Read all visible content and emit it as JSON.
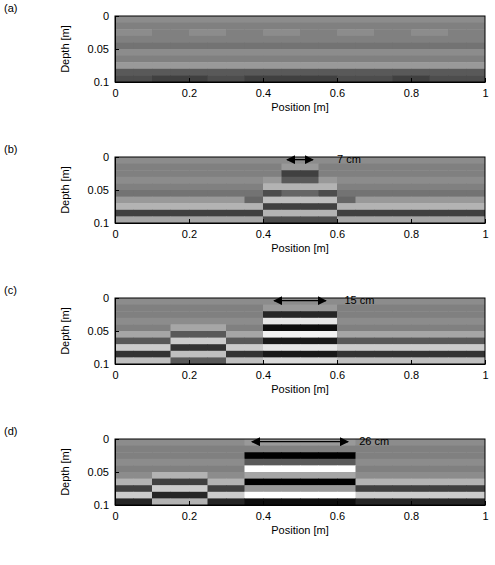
{
  "chart_data": [
    {
      "type": "heatmap",
      "title": "(a)",
      "x_label": "Position [m]",
      "y_label": "Depth [m]",
      "xlim": [
        0,
        1
      ],
      "ylim": [
        0,
        0.1
      ],
      "xticks": [
        0,
        0.2,
        0.4,
        0.6,
        0.8,
        1
      ],
      "yticks": [
        0,
        0.05,
        0.1
      ],
      "x": [
        0.025,
        0.075,
        0.125,
        0.175,
        0.225,
        0.275,
        0.325,
        0.375,
        0.425,
        0.475,
        0.525,
        0.575,
        0.625,
        0.675,
        0.725,
        0.775,
        0.825,
        0.875,
        0.925,
        0.975
      ],
      "y": [
        0.005,
        0.015,
        0.025,
        0.035,
        0.045,
        0.055,
        0.065,
        0.075,
        0.085,
        0.095
      ],
      "cells": [
        [
          0.1,
          0.1,
          0.1,
          0.1,
          0.1,
          0.1,
          0.1,
          0.1,
          0.1,
          0.1,
          0.1,
          0.1,
          0.1,
          0.1,
          0.1,
          0.1,
          0.1,
          0.1,
          0.1,
          0.1
        ],
        [
          0,
          0,
          0,
          0,
          0,
          0,
          0,
          0,
          0,
          0,
          0,
          0,
          0,
          0,
          0,
          0,
          0,
          0,
          0,
          0
        ],
        [
          0.1,
          0.1,
          0,
          0,
          0.1,
          0.1,
          0,
          0,
          0.1,
          0.1,
          0,
          0,
          0.1,
          0.1,
          0,
          0,
          0.1,
          0.1,
          0,
          0
        ],
        [
          0,
          0,
          0,
          0,
          0,
          0,
          0,
          0,
          0,
          0,
          0,
          0,
          0,
          0,
          0,
          0,
          0,
          0,
          0,
          0
        ],
        [
          -0.1,
          -0.1,
          -0.1,
          -0.1,
          -0.1,
          -0.1,
          -0.1,
          -0.1,
          -0.1,
          -0.1,
          -0.1,
          -0.1,
          -0.1,
          -0.1,
          -0.1,
          -0.1,
          -0.1,
          -0.1,
          -0.1,
          -0.1
        ],
        [
          0.1,
          0.1,
          0.1,
          0.1,
          0.1,
          0.1,
          0.1,
          0.1,
          0.1,
          0.1,
          0.1,
          0.1,
          0.1,
          0.1,
          0.1,
          0.1,
          0.1,
          0.1,
          0.1,
          0.1
        ],
        [
          0,
          0,
          0,
          0,
          0,
          0,
          0,
          0,
          0,
          0,
          0,
          0,
          0,
          0,
          0,
          0,
          0,
          0,
          0,
          0
        ],
        [
          0.2,
          0.2,
          0.2,
          0.2,
          0.2,
          0.2,
          0.2,
          0.2,
          0.2,
          0.2,
          0.2,
          0.2,
          0.2,
          0.2,
          0.2,
          0.2,
          0.2,
          0.2,
          0.2,
          0.2
        ],
        [
          -0.3,
          -0.3,
          -0.3,
          -0.3,
          -0.3,
          -0.3,
          -0.3,
          -0.3,
          -0.3,
          -0.3,
          -0.3,
          -0.3,
          -0.3,
          -0.3,
          -0.3,
          -0.3,
          -0.3,
          -0.3,
          -0.3,
          -0.3
        ],
        [
          -0.4,
          -0.4,
          -0.5,
          -0.5,
          -0.5,
          -0.4,
          -0.4,
          -0.5,
          -0.5,
          -0.5,
          -0.5,
          -0.5,
          -0.4,
          -0.4,
          -0.4,
          -0.5,
          -0.5,
          -0.4,
          -0.4,
          -0.4
        ]
      ],
      "annotations": []
    },
    {
      "type": "heatmap",
      "title": "(b)",
      "x_label": "Position [m]",
      "y_label": "Depth [m]",
      "xlim": [
        0,
        1
      ],
      "ylim": [
        0,
        0.1
      ],
      "xticks": [
        0,
        0.2,
        0.4,
        0.6,
        0.8,
        1
      ],
      "yticks": [
        0,
        0.05,
        0.1
      ],
      "x": [
        0.025,
        0.075,
        0.125,
        0.175,
        0.225,
        0.275,
        0.325,
        0.375,
        0.425,
        0.475,
        0.525,
        0.575,
        0.625,
        0.675,
        0.725,
        0.775,
        0.825,
        0.875,
        0.925,
        0.975
      ],
      "y": [
        0.005,
        0.015,
        0.025,
        0.035,
        0.045,
        0.055,
        0.065,
        0.075,
        0.085,
        0.095
      ],
      "cells": [
        [
          0.1,
          0.1,
          0.1,
          0.1,
          0.1,
          0.1,
          0.1,
          0.1,
          0.1,
          0.1,
          0.1,
          0.1,
          0.1,
          0.1,
          0.1,
          0.1,
          0.1,
          0.1,
          0.1,
          0.1
        ],
        [
          0,
          0,
          0,
          0,
          0,
          0,
          0,
          0,
          0,
          0.2,
          0.2,
          0,
          0,
          0,
          0,
          0,
          0,
          0,
          0,
          0
        ],
        [
          0,
          0,
          0,
          0,
          0,
          0,
          0,
          0,
          0,
          -0.5,
          -0.5,
          0,
          0,
          0,
          0,
          0,
          0,
          0,
          0,
          0
        ],
        [
          0.1,
          0.1,
          0.1,
          0.1,
          0.1,
          0.1,
          0.1,
          0.1,
          0.2,
          -0.3,
          -0.3,
          0.2,
          0.1,
          0.1,
          0.1,
          0.1,
          0.1,
          0.1,
          0.1,
          0.1
        ],
        [
          0,
          0,
          0,
          0,
          0,
          0,
          0,
          0,
          0.4,
          0.4,
          0.4,
          0.4,
          0,
          0,
          0,
          0,
          0,
          0,
          0,
          0
        ],
        [
          -0.1,
          -0.1,
          -0.1,
          -0.1,
          -0.1,
          -0.1,
          -0.1,
          -0.1,
          -0.4,
          -0.2,
          -0.2,
          -0.4,
          -0.1,
          -0.1,
          -0.1,
          -0.1,
          -0.1,
          -0.1,
          -0.1,
          -0.1
        ],
        [
          0.2,
          0.2,
          0.2,
          0.2,
          0.2,
          0.2,
          0.2,
          -0.2,
          0.5,
          0.5,
          0.5,
          0.5,
          -0.2,
          0.2,
          0.2,
          0.2,
          0.2,
          0.2,
          0.2,
          0.2
        ],
        [
          0.4,
          0.4,
          0.4,
          0.4,
          0.4,
          0.4,
          0.4,
          0.4,
          -0.5,
          -0.5,
          -0.5,
          -0.5,
          0.4,
          0.4,
          0.4,
          0.4,
          0.4,
          0.4,
          0.4,
          0.4
        ],
        [
          -0.5,
          -0.5,
          -0.5,
          -0.5,
          -0.5,
          -0.5,
          -0.5,
          -0.5,
          0.4,
          0.4,
          0.4,
          0.4,
          -0.5,
          -0.5,
          -0.5,
          -0.5,
          -0.5,
          -0.5,
          -0.5,
          -0.5
        ],
        [
          0.3,
          0.3,
          0.3,
          0.3,
          0.3,
          0.3,
          0.3,
          0.3,
          -0.4,
          -0.4,
          -0.4,
          -0.4,
          0.3,
          0.3,
          0.3,
          0.3,
          0.3,
          0.3,
          0.3,
          0.3
        ]
      ],
      "annotations": [
        {
          "text": "7 cm",
          "x": 0.6,
          "y": 0.004,
          "x_start": 0.465,
          "x_end": 0.535
        }
      ]
    },
    {
      "type": "heatmap",
      "title": "(c)",
      "x_label": "Position [m]",
      "y_label": "Depth [m]",
      "xlim": [
        0,
        1
      ],
      "ylim": [
        0,
        0.1
      ],
      "xticks": [
        0,
        0.2,
        0.4,
        0.6,
        0.8,
        1
      ],
      "yticks": [
        0,
        0.05,
        0.1
      ],
      "x": [
        0.025,
        0.075,
        0.125,
        0.175,
        0.225,
        0.275,
        0.325,
        0.375,
        0.425,
        0.475,
        0.525,
        0.575,
        0.625,
        0.675,
        0.725,
        0.775,
        0.825,
        0.875,
        0.925,
        0.975
      ],
      "y": [
        0.005,
        0.015,
        0.025,
        0.035,
        0.045,
        0.055,
        0.065,
        0.075,
        0.085,
        0.095
      ],
      "cells": [
        [
          0.1,
          0.1,
          0.1,
          0.1,
          0.1,
          0.1,
          0.1,
          0.1,
          0.1,
          0.1,
          0.1,
          0.1,
          0.1,
          0.1,
          0.1,
          0.1,
          0.1,
          0.1,
          0.1,
          0.1
        ],
        [
          0,
          0,
          0,
          0,
          0,
          0,
          0,
          0,
          0.2,
          0.2,
          0.2,
          0.2,
          0,
          0,
          0,
          0,
          0,
          0,
          0,
          0
        ],
        [
          0,
          0,
          0,
          0,
          0,
          0,
          0,
          0,
          -0.7,
          -0.7,
          -0.7,
          -0.7,
          0,
          0,
          0,
          0,
          0,
          0,
          0,
          0
        ],
        [
          0.1,
          0.1,
          0.1,
          0.1,
          0.1,
          0.1,
          0.1,
          0.1,
          0.8,
          0.8,
          0.8,
          0.8,
          0.1,
          0.1,
          0.1,
          0.1,
          0.1,
          0.1,
          0.1,
          0.1
        ],
        [
          0,
          0,
          0,
          0.3,
          0.3,
          0.3,
          0,
          0,
          -0.9,
          -0.9,
          -0.9,
          -0.9,
          0,
          0,
          0,
          0,
          0,
          0,
          0,
          0
        ],
        [
          0.3,
          0.3,
          0.3,
          -0.3,
          -0.3,
          -0.3,
          0.3,
          0.3,
          0.9,
          0.9,
          0.9,
          0.9,
          0.3,
          0.3,
          0.3,
          0.3,
          0.3,
          0.3,
          0.3,
          0.3
        ],
        [
          -0.3,
          -0.3,
          -0.3,
          0.6,
          0.6,
          0.6,
          -0.3,
          -0.3,
          -0.8,
          -0.8,
          -0.8,
          -0.8,
          -0.3,
          -0.3,
          -0.3,
          -0.3,
          -0.3,
          -0.3,
          -0.3,
          -0.3
        ],
        [
          0.6,
          0.6,
          0.6,
          -0.6,
          -0.6,
          -0.6,
          0.6,
          0.6,
          0.8,
          0.8,
          0.8,
          0.8,
          0.6,
          0.6,
          0.6,
          0.6,
          0.6,
          0.6,
          0.6,
          0.6
        ],
        [
          -0.6,
          -0.6,
          -0.6,
          0.5,
          0.5,
          0.5,
          -0.6,
          -0.6,
          -0.8,
          -0.8,
          -0.8,
          -0.8,
          -0.6,
          -0.6,
          -0.6,
          -0.6,
          -0.6,
          -0.6,
          -0.6,
          -0.6
        ],
        [
          0.5,
          0.5,
          0.5,
          -0.3,
          -0.3,
          -0.3,
          0.5,
          0.5,
          0.7,
          0.7,
          0.7,
          0.7,
          0.5,
          0.5,
          0.5,
          0.5,
          0.5,
          0.5,
          0.5,
          0.5
        ]
      ],
      "annotations": [
        {
          "text": "15 cm",
          "x": 0.62,
          "y": 0.004,
          "x_start": 0.43,
          "x_end": 0.57
        }
      ]
    },
    {
      "type": "heatmap",
      "title": "(d)",
      "x_label": "Position [m]",
      "y_label": "Depth [m]",
      "xlim": [
        0,
        1
      ],
      "ylim": [
        0,
        0.1
      ],
      "xticks": [
        0,
        0.2,
        0.4,
        0.6,
        0.8,
        1
      ],
      "yticks": [
        0,
        0.05,
        0.1
      ],
      "x": [
        0.025,
        0.075,
        0.125,
        0.175,
        0.225,
        0.275,
        0.325,
        0.375,
        0.425,
        0.475,
        0.525,
        0.575,
        0.625,
        0.675,
        0.725,
        0.775,
        0.825,
        0.875,
        0.925,
        0.975
      ],
      "y": [
        0.005,
        0.015,
        0.025,
        0.035,
        0.045,
        0.055,
        0.065,
        0.075,
        0.085,
        0.095
      ],
      "cells": [
        [
          0.1,
          0.1,
          0.1,
          0.1,
          0.1,
          0.1,
          0.1,
          0.2,
          0.2,
          0.2,
          0.2,
          0.2,
          0.2,
          0.1,
          0.1,
          0.1,
          0.1,
          0.1,
          0.1,
          0.1
        ],
        [
          0,
          0,
          0,
          0,
          0,
          0,
          0,
          0,
          0,
          0,
          0,
          0,
          0,
          0,
          0,
          0,
          0,
          0,
          0,
          0
        ],
        [
          0,
          0,
          0,
          0,
          0,
          0,
          0,
          -1,
          -1,
          -1,
          -1,
          -1,
          -1,
          0,
          0,
          0,
          0,
          0,
          0,
          0
        ],
        [
          0.1,
          0.1,
          0.1,
          0.1,
          0.1,
          0.1,
          0.1,
          -0.3,
          -0.3,
          -0.3,
          -0.3,
          -0.3,
          -0.3,
          0.1,
          0.1,
          0.1,
          0.1,
          0.1,
          0.1,
          0.1
        ],
        [
          0,
          0,
          0,
          0,
          0,
          0,
          0,
          1,
          1,
          1,
          1,
          1,
          1,
          0,
          0,
          0,
          0,
          0,
          0,
          0
        ],
        [
          0.1,
          0.1,
          0.4,
          0.4,
          0.4,
          0.1,
          0.1,
          0.3,
          0.3,
          0.3,
          0.3,
          0.3,
          0.3,
          0.1,
          0.1,
          0.1,
          0.1,
          0.1,
          0.1,
          0.1
        ],
        [
          0.4,
          0.4,
          -0.5,
          -0.5,
          -0.5,
          0.4,
          0.4,
          -1,
          -1,
          -1,
          -1,
          -1,
          -1,
          0.4,
          0.4,
          0.4,
          0.4,
          0.4,
          0.4,
          0.4
        ],
        [
          -0.5,
          -0.5,
          0.6,
          0.6,
          0.6,
          -0.5,
          -0.5,
          0.2,
          0.2,
          0.2,
          0.2,
          0.2,
          0.2,
          -0.5,
          -0.5,
          -0.5,
          -0.5,
          -0.5,
          -0.5,
          -0.5
        ],
        [
          0.6,
          0.6,
          -0.7,
          -0.7,
          -0.7,
          0.6,
          0.6,
          1,
          1,
          1,
          1,
          1,
          1,
          0.6,
          0.6,
          0.6,
          0.6,
          0.6,
          0.6,
          0.6
        ],
        [
          -0.7,
          -0.7,
          0.4,
          0.4,
          0.4,
          -0.7,
          -0.7,
          -0.9,
          -0.9,
          -0.9,
          -0.9,
          -0.9,
          -0.9,
          -0.7,
          -0.7,
          -0.7,
          -0.7,
          -0.7,
          -0.7,
          -0.7
        ]
      ],
      "annotations": [
        {
          "text": "26 cm",
          "x": 0.66,
          "y": 0.004,
          "x_start": 0.37,
          "x_end": 0.63
        }
      ]
    }
  ]
}
